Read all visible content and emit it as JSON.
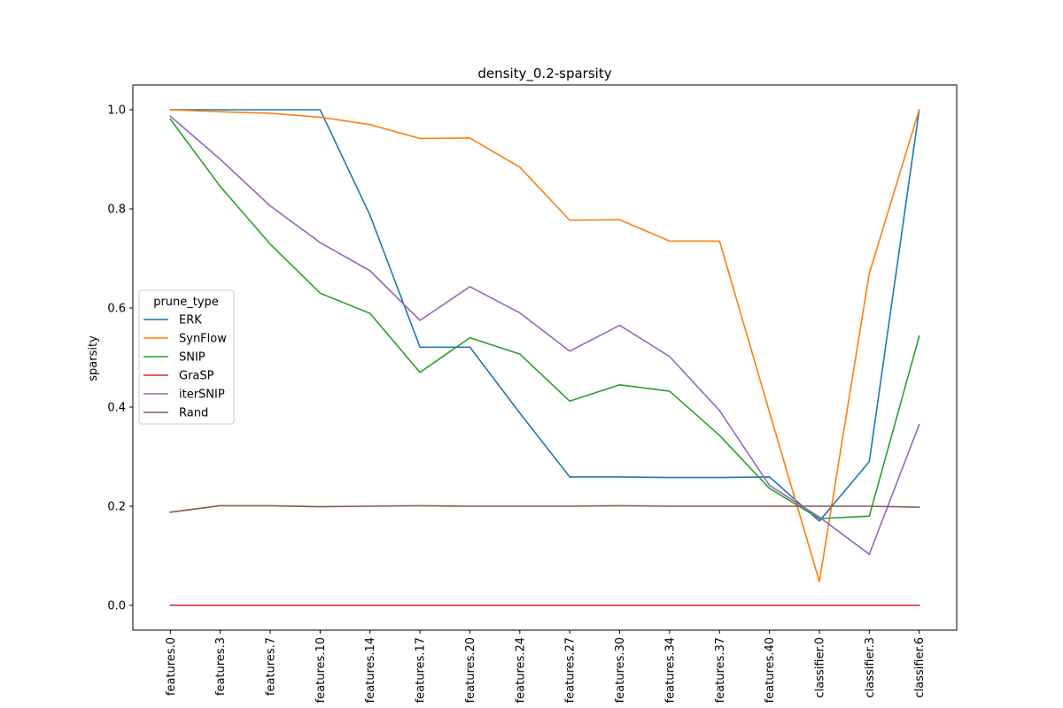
{
  "chart_data": {
    "type": "line",
    "title": "density_0.2-sparsity",
    "xlabel": "",
    "ylabel": "sparsity",
    "categories": [
      "features.0",
      "features.3",
      "features.7",
      "features.10",
      "features.14",
      "features.17",
      "features.20",
      "features.24",
      "features.27",
      "features.30",
      "features.34",
      "features.37",
      "features.40",
      "classifier.0",
      "classifier.3",
      "classifier.6"
    ],
    "yticks": [
      "0.0",
      "0.2",
      "0.4",
      "0.6",
      "0.8",
      "1.0"
    ],
    "ylim": [
      -0.05,
      1.05
    ],
    "grid": false,
    "legend": {
      "title": "prune_type",
      "placement": "center-left"
    },
    "series": [
      {
        "name": "ERK",
        "color": "#1f77b4",
        "values": [
          1.0,
          1.0,
          1.0,
          1.0,
          0.787,
          0.521,
          0.521,
          0.388,
          0.259,
          0.259,
          0.258,
          0.258,
          0.259,
          0.17,
          0.29,
          1.0
        ]
      },
      {
        "name": "SynFlow",
        "color": "#ff7f0e",
        "values": [
          1.0,
          0.996,
          0.993,
          0.985,
          0.97,
          0.942,
          0.943,
          0.884,
          0.777,
          0.778,
          0.735,
          0.735,
          0.39,
          0.048,
          0.67,
          1.0
        ]
      },
      {
        "name": "SNIP",
        "color": "#2ca02c",
        "values": [
          0.981,
          0.845,
          0.729,
          0.63,
          0.589,
          0.47,
          0.54,
          0.507,
          0.412,
          0.445,
          0.432,
          0.343,
          0.236,
          0.175,
          0.18,
          0.543
        ]
      },
      {
        "name": "GraSP",
        "color": "#d62728",
        "values": [
          0.0,
          0.0,
          0.0,
          0.0,
          0.0,
          0.0,
          0.0,
          0.0,
          0.0,
          0.0,
          0.0,
          0.0,
          0.0,
          0.0,
          0.0,
          0.0
        ]
      },
      {
        "name": "iterSNIP",
        "color": "#9467bd",
        "values": [
          0.987,
          0.9,
          0.806,
          0.732,
          0.675,
          0.575,
          0.643,
          0.59,
          0.513,
          0.565,
          0.502,
          0.393,
          0.242,
          0.178,
          0.103,
          0.365
        ]
      },
      {
        "name": "Rand",
        "color": "#8c564b",
        "values": [
          0.188,
          0.201,
          0.201,
          0.199,
          0.2,
          0.201,
          0.2,
          0.2,
          0.2,
          0.201,
          0.2,
          0.2,
          0.2,
          0.2,
          0.2,
          0.198
        ]
      }
    ]
  }
}
